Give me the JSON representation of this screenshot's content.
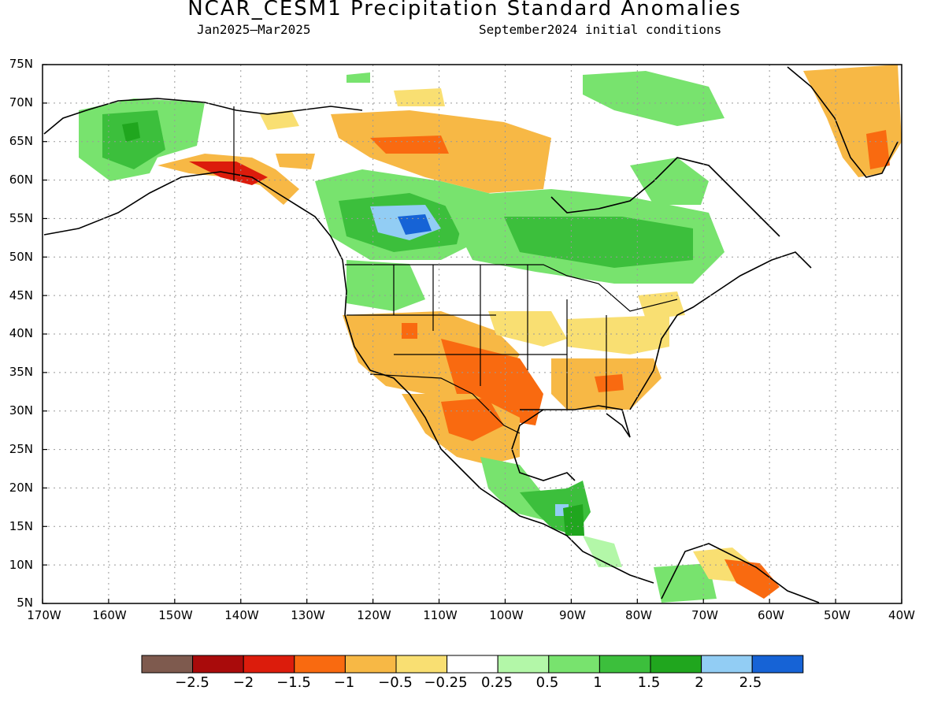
{
  "title": "NCAR_CESM1 Precipitation Standard Anomalies",
  "period": "Jan2025–Mar2025",
  "init": "September2024 initial conditions",
  "lat_labels": [
    "75N",
    "70N",
    "65N",
    "60N",
    "55N",
    "50N",
    "45N",
    "40N",
    "35N",
    "30N",
    "25N",
    "20N",
    "15N",
    "10N",
    "5N"
  ],
  "lon_labels": [
    "170W",
    "160W",
    "150W",
    "140W",
    "130W",
    "120W",
    "110W",
    "100W",
    "90W",
    "80W",
    "70W",
    "60W",
    "50W",
    "40W"
  ],
  "legend": {
    "colors": [
      "#7e5a4e",
      "#a90b0b",
      "#dc1c0c",
      "#f96a10",
      "#f7b845",
      "#f9df72",
      "#ffffff",
      "#b3f7a8",
      "#78e36e",
      "#3cbf3c",
      "#20a61e",
      "#92cdf4",
      "#1663d6"
    ],
    "labels": [
      "−2.5",
      "−2",
      "−1.5",
      "−1",
      "−0.5",
      "−0.25",
      "0.25",
      "0.5",
      "1",
      "1.5",
      "2",
      "2.5"
    ]
  },
  "map_data": {
    "region": "North America",
    "lon_range": [
      -170,
      -40
    ],
    "lat_range": [
      5,
      75
    ],
    "variable": "Precipitation standard anomaly",
    "features": [
      {
        "name": "Western Alaska",
        "anomaly": 1.0
      },
      {
        "name": "Southern Alaska coast",
        "anomaly": -1.5
      },
      {
        "name": "Western Canada",
        "anomaly": 2.5
      },
      {
        "name": "Central Canada / Ontario-Quebec",
        "anomaly": 1.5
      },
      {
        "name": "Northern Canada (Nunavut)",
        "anomaly": -1.0
      },
      {
        "name": "US Southwest",
        "anomaly": -1.0
      },
      {
        "name": "Texas / New Mexico",
        "anomaly": -1.5
      },
      {
        "name": "US Southeast",
        "anomaly": -0.5
      },
      {
        "name": "Northern Mexico",
        "anomaly": -1.5
      },
      {
        "name": "Southern Mexico / Guatemala",
        "anomaly": 2.0
      },
      {
        "name": "Greenland",
        "anomaly": -1.0
      },
      {
        "name": "Venezuela",
        "anomaly": -1.5
      },
      {
        "name": "Colombia",
        "anomaly": 1.0
      }
    ]
  }
}
